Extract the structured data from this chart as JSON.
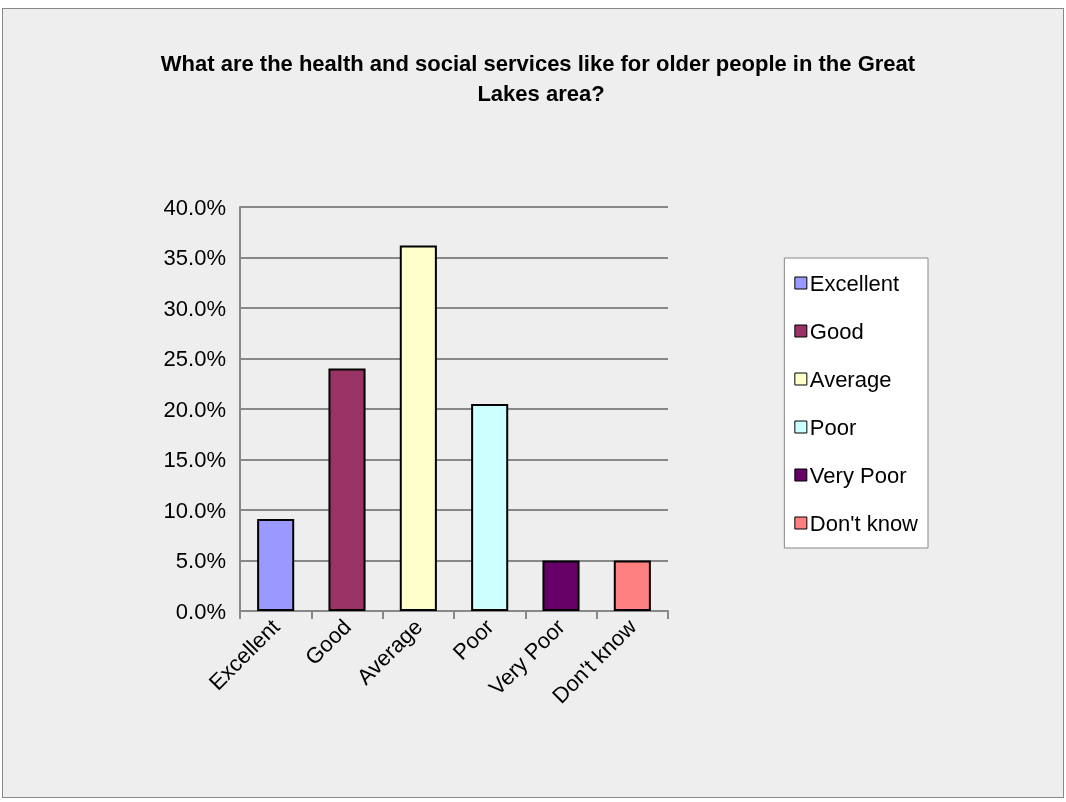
{
  "chart_data": {
    "type": "bar",
    "title": "What are the health and social services like for older people in the Great Lakes area?",
    "categories": [
      "Excellent",
      "Good",
      "Average",
      "Poor",
      "Very Poor",
      "Don't know"
    ],
    "series": [
      {
        "name": "Excellent",
        "color": "#9999ff",
        "values": [
          9.1,
          null,
          null,
          null,
          null,
          null
        ]
      },
      {
        "name": "Good",
        "color": "#993366",
        "values": [
          null,
          24.0,
          null,
          null,
          null,
          null
        ]
      },
      {
        "name": "Average",
        "color": "#ffffcc",
        "values": [
          null,
          null,
          36.2,
          null,
          null,
          null
        ]
      },
      {
        "name": "Poor",
        "color": "#ccffff",
        "values": [
          null,
          null,
          null,
          20.5,
          null,
          null
        ]
      },
      {
        "name": "Very Poor",
        "color": "#660066",
        "values": [
          null,
          null,
          null,
          null,
          5.0,
          null
        ]
      },
      {
        "name": "Don't know",
        "color": "#ff8080",
        "values": [
          null,
          null,
          null,
          null,
          null,
          5.0
        ]
      }
    ],
    "stacked": true,
    "ylim": [
      0,
      40
    ],
    "yticks": [
      {
        "value": 0,
        "label": "0.0%"
      },
      {
        "value": 5,
        "label": "5.0%"
      },
      {
        "value": 10,
        "label": "10.0%"
      },
      {
        "value": 15,
        "label": "15.0%"
      },
      {
        "value": 20,
        "label": "20.0%"
      },
      {
        "value": 25,
        "label": "25.0%"
      },
      {
        "value": 30,
        "label": "30.0%"
      },
      {
        "value": 35,
        "label": "35.0%"
      },
      {
        "value": 40,
        "label": "40.0%"
      }
    ],
    "grid": "y",
    "legend": "right"
  }
}
